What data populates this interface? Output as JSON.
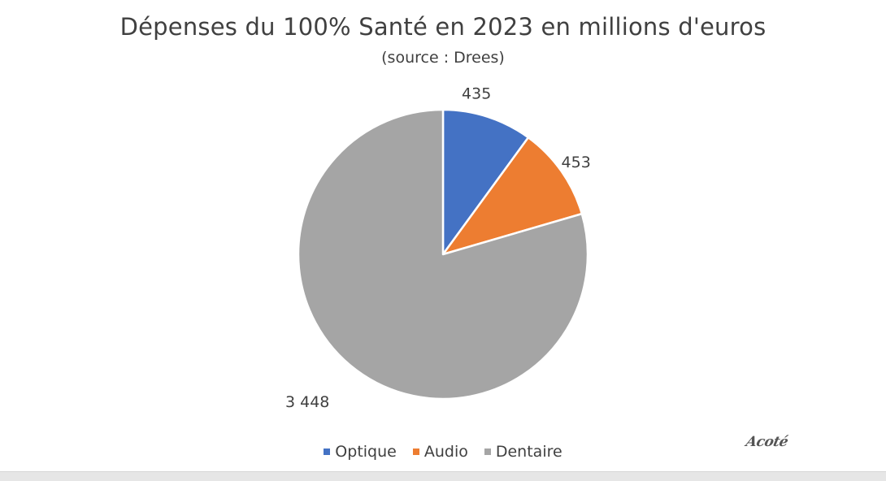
{
  "chart_data": {
    "type": "pie",
    "title": "Dépenses du 100% Santé en 2023 en millions d'euros",
    "subtitle": "(source : Drees)",
    "categories": [
      "Optique",
      "Audio",
      "Dentaire"
    ],
    "values": [
      435,
      453,
      3448
    ],
    "data_labels": [
      "435",
      "453",
      "3 448"
    ],
    "colors": [
      "#4472C4",
      "#ED7D31",
      "#A5A5A5"
    ],
    "legend_position": "bottom"
  },
  "logo_text": "Acoté"
}
